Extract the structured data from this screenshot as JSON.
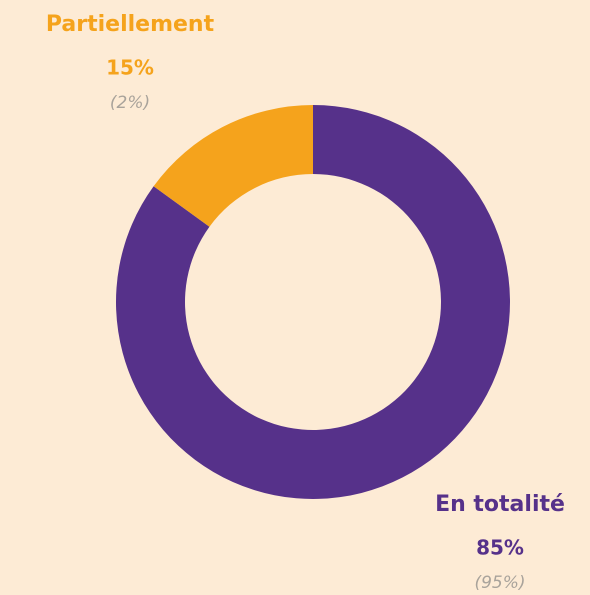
{
  "chart_data": {
    "type": "donut",
    "categories": [
      "En totalité",
      "Partiellement"
    ],
    "values": [
      85,
      15
    ],
    "value_labels": [
      "85%",
      "15%"
    ],
    "annotations": [
      "(95%)",
      "(2%)"
    ],
    "colors": [
      "#56318a",
      "#f5a31c"
    ]
  }
}
